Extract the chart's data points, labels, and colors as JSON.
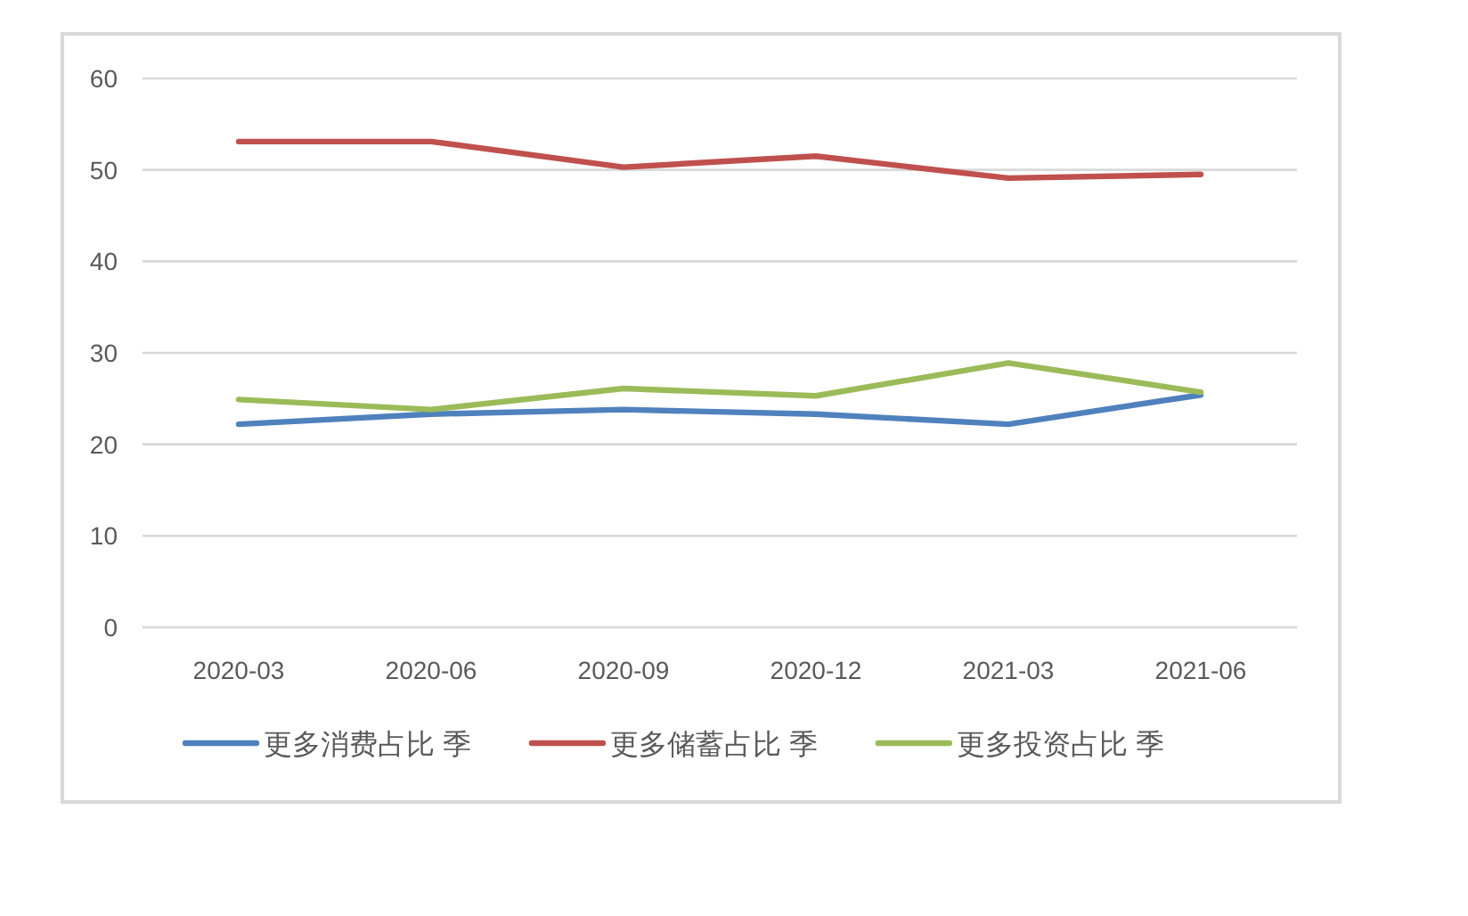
{
  "chart_data": {
    "type": "line",
    "categories": [
      "2020-03",
      "2020-06",
      "2020-09",
      "2020-12",
      "2021-03",
      "2021-06"
    ],
    "series": [
      {
        "name": "更多消费占比 季",
        "color": "#4f81bd",
        "values": [
          22.2,
          23.3,
          23.8,
          23.3,
          22.2,
          25.4
        ]
      },
      {
        "name": "更多储蓄占比 季",
        "color": "#c0504d",
        "values": [
          53.1,
          53.1,
          50.3,
          51.5,
          49.1,
          49.5
        ]
      },
      {
        "name": "更多投资占比 季",
        "color": "#9bbb59",
        "values": [
          24.9,
          23.8,
          26.1,
          25.3,
          28.9,
          25.7
        ]
      }
    ],
    "ylim": [
      0,
      60
    ],
    "yticks": [
      0,
      10,
      20,
      30,
      40,
      50,
      60
    ],
    "grid": "y",
    "legend": "bottom",
    "marker": "none",
    "line_style": "solid"
  }
}
